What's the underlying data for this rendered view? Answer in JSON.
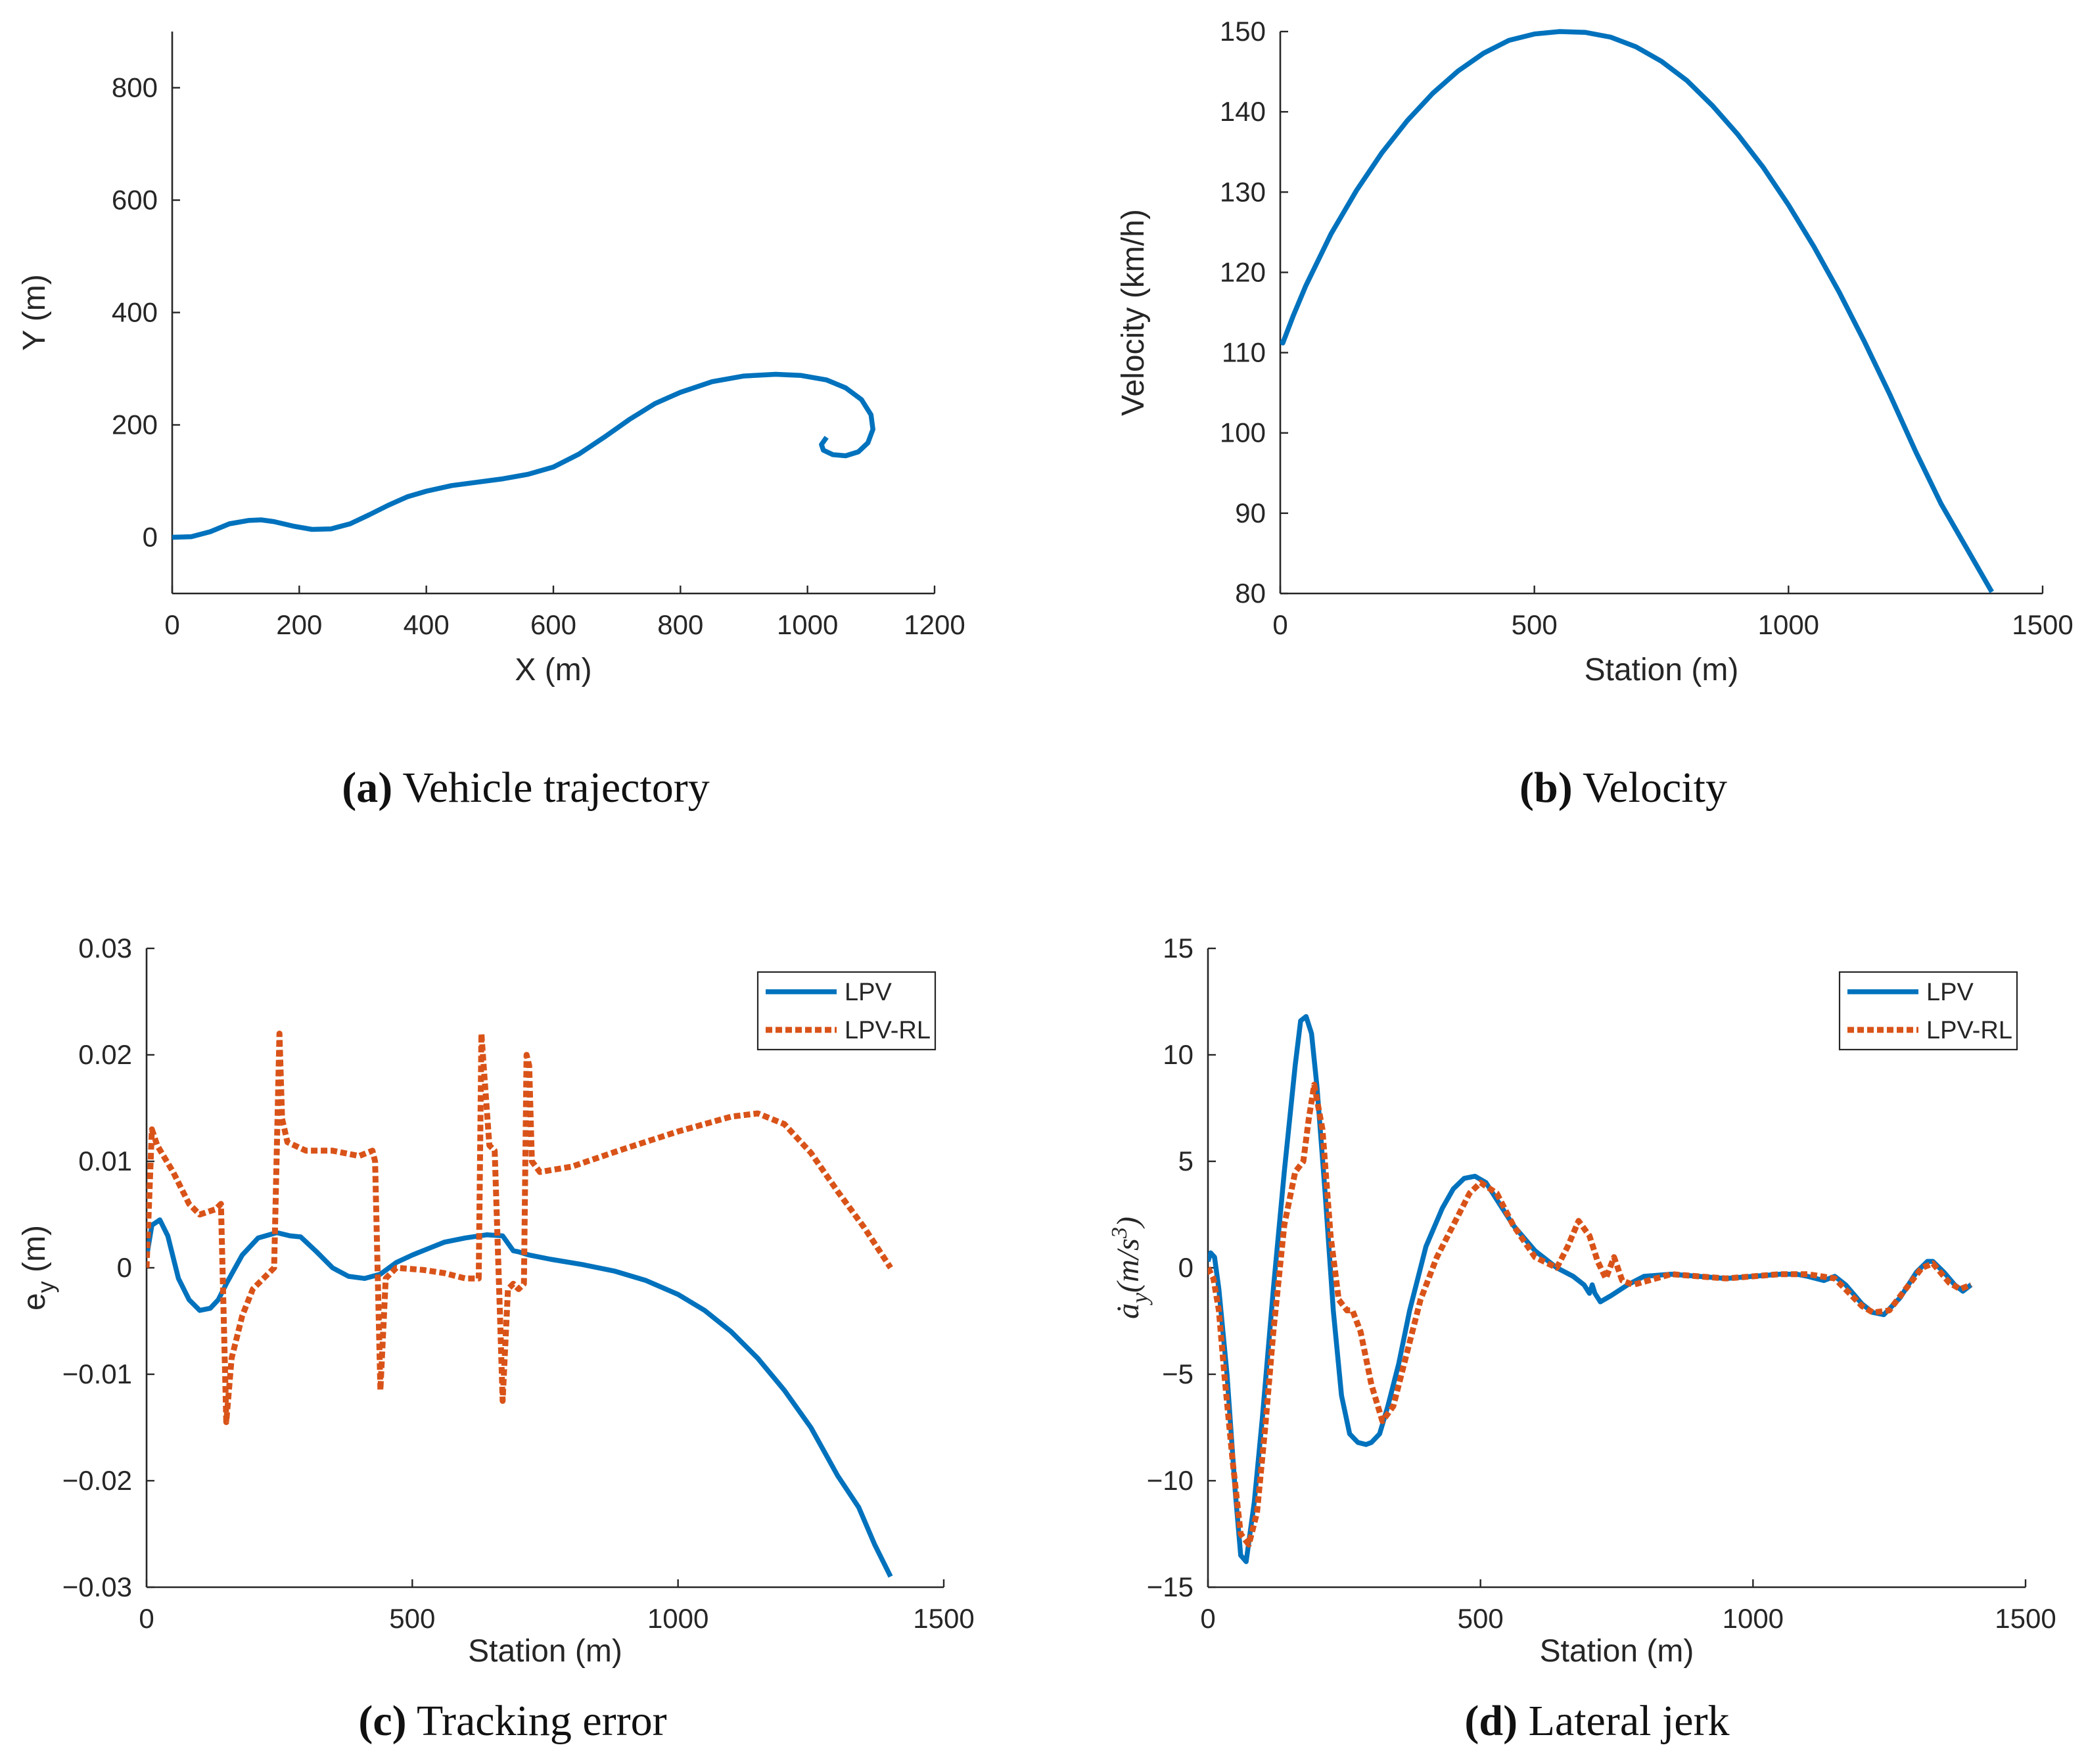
{
  "chart_data": [
    {
      "id": "a",
      "type": "line",
      "caption_letter": "(a)",
      "caption_text": "Vehicle trajectory",
      "xlabel": "X (m)",
      "ylabel": "Y (m)",
      "xlim": [
        0,
        1200
      ],
      "ylim": [
        -100,
        900
      ],
      "xticks": [
        0,
        200,
        400,
        600,
        800,
        1000,
        1200
      ],
      "yticks": [
        0,
        200,
        400,
        600,
        800
      ],
      "xtick_labels": [
        "0",
        "200",
        "400",
        "600",
        "800",
        "1000",
        "1200"
      ],
      "ytick_labels": [
        "0",
        "200",
        "400",
        "600",
        "800"
      ],
      "series": [
        {
          "name": "Trajectory",
          "color": "#0072BD",
          "dash": "solid",
          "x": [
            0,
            30,
            60,
            90,
            120,
            140,
            160,
            190,
            220,
            250,
            280,
            310,
            340,
            370,
            400,
            440,
            480,
            520,
            560,
            600,
            640,
            680,
            720,
            760,
            800,
            850,
            900,
            950,
            990,
            1030,
            1060,
            1085,
            1100,
            1103,
            1095,
            1080,
            1060,
            1040,
            1025,
            1022,
            1030
          ],
          "y": [
            0,
            1,
            10,
            24,
            30,
            31,
            28,
            20,
            14,
            15,
            24,
            40,
            57,
            72,
            82,
            92,
            98,
            104,
            112,
            125,
            148,
            178,
            210,
            238,
            258,
            277,
            287,
            290,
            288,
            280,
            266,
            245,
            218,
            192,
            168,
            152,
            145,
            147,
            155,
            165,
            178
          ]
        }
      ]
    },
    {
      "id": "b",
      "type": "line",
      "caption_letter": "(b)",
      "caption_text": "Velocity",
      "xlabel": "Station (m)",
      "ylabel": "Velocity (km/h)",
      "xlim": [
        0,
        1500
      ],
      "ylim": [
        80,
        150
      ],
      "xticks": [
        0,
        500,
        1000,
        1500
      ],
      "yticks": [
        80,
        90,
        100,
        110,
        120,
        130,
        140,
        150
      ],
      "xtick_labels": [
        "0",
        "500",
        "1000",
        "1500"
      ],
      "ytick_labels": [
        "80",
        "90",
        "100",
        "110",
        "120",
        "130",
        "140",
        "150"
      ],
      "series": [
        {
          "name": "Velocity",
          "color": "#0072BD",
          "dash": "solid",
          "x": [
            0,
            5,
            25,
            50,
            100,
            150,
            200,
            250,
            300,
            350,
            400,
            450,
            500,
            550,
            600,
            650,
            700,
            750,
            800,
            850,
            900,
            950,
            1000,
            1050,
            1100,
            1150,
            1200,
            1250,
            1300,
            1350,
            1400
          ],
          "y": [
            111.5,
            111.2,
            114.5,
            118.3,
            124.8,
            130.2,
            134.9,
            138.9,
            142.3,
            145.1,
            147.3,
            148.9,
            149.7,
            150.0,
            149.9,
            149.3,
            148.1,
            146.3,
            143.9,
            140.8,
            137.2,
            133.1,
            128.4,
            123.2,
            117.5,
            111.3,
            104.7,
            97.7,
            91.2,
            85.7,
            80.2
          ]
        }
      ]
    },
    {
      "id": "c",
      "type": "line",
      "caption_letter": "(c)",
      "caption_text": "Tracking error",
      "xlabel": "Station (m)",
      "ylabel": "e",
      "ylabel_sub": "y",
      "ylabel_suffix": " (m)",
      "xlim": [
        0,
        1500
      ],
      "ylim": [
        -0.03,
        0.03
      ],
      "xticks": [
        0,
        500,
        1000,
        1500
      ],
      "yticks": [
        -0.03,
        -0.02,
        -0.01,
        0,
        0.01,
        0.02,
        0.03
      ],
      "xtick_labels": [
        "0",
        "500",
        "1000",
        "1500"
      ],
      "ytick_labels": [
        "−0.03",
        "−0.02",
        "−0.01",
        "0",
        "0.01",
        "0.02",
        "0.03"
      ],
      "legend": [
        "LPV",
        "LPV-RL"
      ],
      "series": [
        {
          "name": "LPV",
          "color": "#0072BD",
          "dash": "solid",
          "x": [
            0,
            10,
            25,
            40,
            60,
            80,
            100,
            120,
            135,
            150,
            180,
            210,
            245,
            270,
            290,
            320,
            350,
            380,
            410,
            440,
            470,
            500,
            530,
            560,
            600,
            640,
            670,
            690,
            700,
            720,
            760,
            820,
            880,
            940,
            1000,
            1050,
            1100,
            1150,
            1200,
            1250,
            1300,
            1340,
            1370,
            1400
          ],
          "y": [
            0.001,
            0.004,
            0.0045,
            0.003,
            -0.001,
            -0.003,
            -0.004,
            -0.0038,
            -0.003,
            -0.0015,
            0.0012,
            0.0028,
            0.0033,
            0.003,
            0.0029,
            0.0015,
            0.0,
            -0.0008,
            -0.001,
            -0.0006,
            0.0005,
            0.0012,
            0.0018,
            0.0024,
            0.0028,
            0.0031,
            0.003,
            0.0016,
            0.0015,
            0.0012,
            0.0008,
            0.0003,
            -0.0003,
            -0.0012,
            -0.0025,
            -0.004,
            -0.006,
            -0.0085,
            -0.0115,
            -0.015,
            -0.0195,
            -0.0225,
            -0.026,
            -0.029
          ]
        },
        {
          "name": "LPV-RL",
          "color": "#D95319",
          "dash": "dotted",
          "x": [
            0,
            10,
            20,
            50,
            80,
            100,
            130,
            140,
            150,
            160,
            180,
            200,
            220,
            240,
            250,
            255,
            265,
            300,
            350,
            400,
            425,
            430,
            440,
            450,
            470,
            520,
            560,
            600,
            625,
            630,
            635,
            645,
            655,
            665,
            670,
            680,
            690,
            700,
            710,
            715,
            720,
            725,
            740,
            800,
            900,
            1000,
            1100,
            1150,
            1200,
            1250,
            1300,
            1350,
            1400
          ],
          "y": [
            0.0,
            0.013,
            0.0115,
            0.009,
            0.006,
            0.005,
            0.0055,
            0.006,
            -0.0145,
            -0.0085,
            -0.0045,
            -0.002,
            -0.001,
            0.0,
            0.022,
            0.014,
            0.0118,
            0.011,
            0.011,
            0.0105,
            0.011,
            0.01,
            -0.0115,
            -0.001,
            0.0,
            -0.0002,
            -0.0005,
            -0.001,
            -0.001,
            0.022,
            0.0185,
            0.0115,
            0.011,
            -0.0045,
            -0.0125,
            -0.002,
            -0.0015,
            -0.002,
            -0.0015,
            0.02,
            0.019,
            0.01,
            0.009,
            0.0095,
            0.0112,
            0.0128,
            0.0142,
            0.0145,
            0.0135,
            0.0108,
            0.0072,
            0.0038,
            0.0
          ]
        }
      ]
    },
    {
      "id": "d",
      "type": "line",
      "caption_letter": "(d)",
      "caption_text": "Lateral jerk",
      "xlabel": "Station (m)",
      "ylabel": "ȧ",
      "ylabel_sub": "y",
      "ylabel_suffix": "(m/s",
      "ylabel_sup": "3",
      "ylabel_close": ")",
      "xlim": [
        0,
        1500
      ],
      "ylim": [
        -15,
        15
      ],
      "xticks": [
        0,
        500,
        1000,
        1500
      ],
      "yticks": [
        -15,
        -10,
        -5,
        0,
        5,
        10,
        15
      ],
      "xtick_labels": [
        "0",
        "500",
        "1000",
        "1500"
      ],
      "ytick_labels": [
        "−15",
        "−10",
        "−5",
        "0",
        "5",
        "10",
        "15"
      ],
      "legend": [
        "LPV",
        "LPV-RL"
      ],
      "series": [
        {
          "name": "LPV",
          "color": "#0072BD",
          "dash": "solid",
          "x": [
            0,
            5,
            12,
            20,
            35,
            50,
            60,
            70,
            85,
            100,
            120,
            140,
            160,
            170,
            180,
            190,
            200,
            215,
            230,
            245,
            260,
            275,
            290,
            300,
            315,
            330,
            350,
            370,
            400,
            430,
            450,
            470,
            490,
            510,
            530,
            560,
            600,
            640,
            670,
            690,
            700,
            705,
            710,
            720,
            740,
            770,
            800,
            850,
            900,
            950,
            1000,
            1050,
            1080,
            1100,
            1130,
            1150,
            1170,
            1200,
            1220,
            1240,
            1270,
            1300,
            1320,
            1330,
            1350,
            1370,
            1385,
            1400
          ],
          "y": [
            0.3,
            0.7,
            0.5,
            -1.0,
            -5.0,
            -10.5,
            -13.5,
            -13.8,
            -11.0,
            -7.0,
            -1.0,
            4.5,
            9.5,
            11.6,
            11.8,
            11.0,
            8.5,
            3.5,
            -2.0,
            -6.0,
            -7.8,
            -8.2,
            -8.3,
            -8.2,
            -7.8,
            -6.5,
            -4.5,
            -2.0,
            1.0,
            2.8,
            3.7,
            4.2,
            4.3,
            4.0,
            3.2,
            2.0,
            0.8,
            0.0,
            -0.4,
            -0.8,
            -1.2,
            -0.8,
            -1.2,
            -1.6,
            -1.3,
            -0.8,
            -0.4,
            -0.3,
            -0.4,
            -0.5,
            -0.4,
            -0.3,
            -0.3,
            -0.4,
            -0.6,
            -0.4,
            -0.8,
            -1.7,
            -2.1,
            -2.2,
            -1.4,
            -0.2,
            0.3,
            0.3,
            -0.2,
            -0.8,
            -1.1,
            -0.8
          ]
        },
        {
          "name": "LPV-RL",
          "color": "#D95319",
          "dash": "dotted",
          "x": [
            0,
            10,
            20,
            30,
            45,
            60,
            75,
            90,
            105,
            120,
            140,
            160,
            175,
            185,
            195,
            210,
            225,
            240,
            255,
            265,
            280,
            300,
            320,
            340,
            360,
            390,
            420,
            440,
            460,
            480,
            500,
            530,
            560,
            600,
            640,
            660,
            680,
            700,
            715,
            730,
            745,
            760,
            780,
            850,
            900,
            950,
            1000,
            1050,
            1100,
            1150,
            1200,
            1220,
            1250,
            1280,
            1310,
            1330,
            1360,
            1380,
            1400
          ],
          "y": [
            0.0,
            -0.5,
            -2.0,
            -5.0,
            -9.0,
            -12.5,
            -13.0,
            -11.5,
            -7.5,
            -3.0,
            2.0,
            4.5,
            5.0,
            7.0,
            8.6,
            6.5,
            1.5,
            -1.5,
            -2.0,
            -2.0,
            -3.0,
            -5.5,
            -7.2,
            -6.5,
            -4.5,
            -1.5,
            0.5,
            1.5,
            2.5,
            3.5,
            4.0,
            3.5,
            2.0,
            0.5,
            0.0,
            1.0,
            2.2,
            1.5,
            0.3,
            -0.5,
            0.5,
            -0.6,
            -0.8,
            -0.3,
            -0.4,
            -0.5,
            -0.4,
            -0.3,
            -0.3,
            -0.5,
            -1.8,
            -2.1,
            -2.0,
            -1.0,
            0.0,
            0.2,
            -0.7,
            -1.0,
            -0.8
          ]
        }
      ]
    }
  ]
}
